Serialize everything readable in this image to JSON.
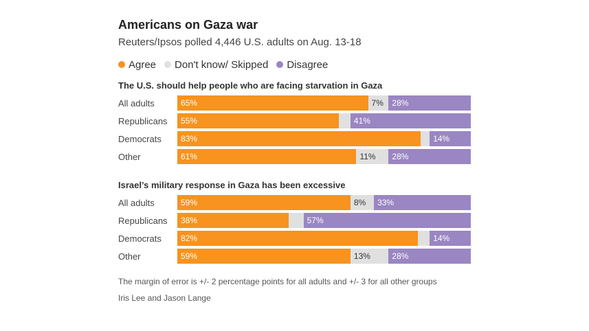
{
  "title": "Americans on Gaza war",
  "subtitle": "Reuters/Ipsos polled 4,446 U.S. adults on Aug. 13-18",
  "colors": {
    "agree": "#f7931e",
    "dk": "#e0e0e0",
    "disagree": "#9a86c2"
  },
  "chart_data": [
    {
      "type": "bar",
      "stacked": true,
      "orientation": "horizontal",
      "title": "The U.S. should help people who are facing starvation in Gaza",
      "categories": [
        "All adults",
        "Republicans",
        "Democrats",
        "Other"
      ],
      "series": [
        {
          "name": "Agree",
          "values": [
            65,
            55,
            83,
            61
          ],
          "labels": [
            "65%",
            "55%",
            "83%",
            "61%"
          ]
        },
        {
          "name": "Don't know/ Skipped",
          "values": [
            7,
            4,
            3,
            11
          ],
          "labels": [
            "7%",
            "",
            "",
            "11%"
          ]
        },
        {
          "name": "Disagree",
          "values": [
            28,
            41,
            14,
            28
          ],
          "labels": [
            "28%",
            "41%",
            "14%",
            "28%"
          ]
        }
      ],
      "xlim": [
        0,
        100
      ],
      "legend": "top"
    },
    {
      "type": "bar",
      "stacked": true,
      "orientation": "horizontal",
      "title": "Israel’s military response in Gaza has been excessive",
      "categories": [
        "All adults",
        "Republicans",
        "Democrats",
        "Other"
      ],
      "series": [
        {
          "name": "Agree",
          "values": [
            59,
            38,
            82,
            59
          ],
          "labels": [
            "59%",
            "38%",
            "82%",
            "59%"
          ]
        },
        {
          "name": "Don't know/ Skipped",
          "values": [
            8,
            5,
            4,
            13
          ],
          "labels": [
            "8%",
            "",
            "",
            "13%"
          ]
        },
        {
          "name": "Disagree",
          "values": [
            33,
            57,
            14,
            28
          ],
          "labels": [
            "33%",
            "57%",
            "14%",
            "28%"
          ]
        }
      ],
      "xlim": [
        0,
        100
      ],
      "legend": "top"
    }
  ],
  "footnote": "The margin of error is +/- 2 percentage points for all adults and +/- 3 for all other groups",
  "credit": "Iris Lee and Jason Lange"
}
